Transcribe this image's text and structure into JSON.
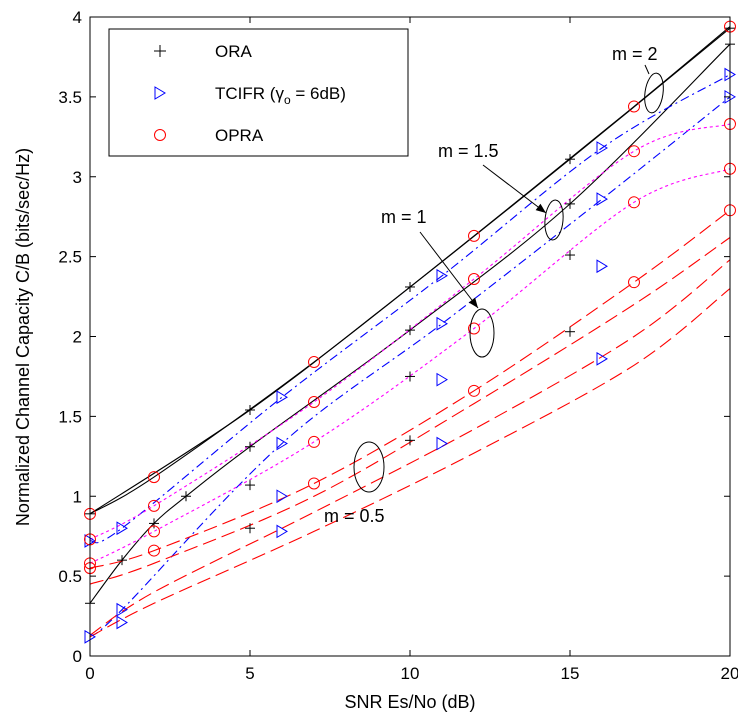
{
  "chart_data": {
    "type": "line",
    "title": "",
    "xlabel": "SNR Es/No (dB)",
    "ylabel": "Normalized Channel Capacity C/B (bits/sec/Hz)",
    "xlim": [
      0,
      20
    ],
    "ylim": [
      0,
      4
    ],
    "xticks": [
      "0",
      "5",
      "10",
      "15",
      "20"
    ],
    "yticks": [
      "0",
      "0.5",
      "1",
      "1.5",
      "2",
      "2.5",
      "3",
      "3.5",
      "4"
    ],
    "grid": false,
    "legend_position": "top-left",
    "legend": [
      {
        "label": "ORA",
        "marker": "plus",
        "color": "#000000"
      },
      {
        "label_main": "TCIFR (",
        "label_gamma": "γ",
        "label_sub": "o",
        "label_tail": " = 6dB)",
        "marker": "triangle-right",
        "color": "#0000ff"
      },
      {
        "label": "OPRA",
        "marker": "circle",
        "color": "#ff0000"
      }
    ],
    "annotations": [
      {
        "label": "m = 2"
      },
      {
        "label": "m = 1.5"
      },
      {
        "label": "m = 1"
      },
      {
        "label": "m = 0.5"
      }
    ],
    "series": [
      {
        "group": "m = 2",
        "method": "ORA",
        "color": "#000000",
        "dash": "solid",
        "marker": "plus",
        "x": [
          0,
          5,
          10,
          15,
          20
        ],
        "y": [
          0.89,
          1.54,
          2.31,
          3.11,
          3.93
        ]
      },
      {
        "group": "m = 2",
        "method": "OPRA",
        "color": "#000000",
        "dash": "solid",
        "marker": "circle",
        "marker_color": "#ff0000",
        "x": [
          0,
          2,
          7,
          12,
          17,
          20
        ],
        "y": [
          0.89,
          1.12,
          1.84,
          2.63,
          3.44,
          3.94
        ]
      },
      {
        "group": "m = 1.5",
        "method": "ORA",
        "color": "#000000",
        "dash": "solid",
        "marker": "plus",
        "x": [
          0,
          1,
          2,
          3,
          5,
          10,
          15,
          20
        ],
        "y": [
          0.33,
          0.6,
          0.83,
          1.0,
          1.31,
          2.04,
          2.83,
          3.83
        ]
      },
      {
        "group": "m = 1.5",
        "method": "TCIFR",
        "color": "#0000ff",
        "dash": "dashdot",
        "marker": "triangle-right",
        "x": [
          0,
          1,
          6,
          11,
          16,
          20
        ],
        "y": [
          0.72,
          0.8,
          1.62,
          2.38,
          3.18,
          3.64
        ]
      },
      {
        "group": "m = 1.5",
        "method": "TCIFR",
        "color": "#0000ff",
        "dash": "dashdot",
        "marker": "triangle-right",
        "x": [
          0,
          1,
          6,
          11,
          16,
          20
        ],
        "y": [
          0.12,
          0.29,
          1.33,
          2.08,
          2.86,
          3.5
        ]
      },
      {
        "group": "m = 1.5",
        "method": "OPRA",
        "color": "#ff00ff",
        "dash": "dotted",
        "marker": "circle",
        "marker_color": "#ff0000",
        "x": [
          0,
          2,
          7,
          12,
          17,
          20
        ],
        "y": [
          0.73,
          0.94,
          1.59,
          2.36,
          3.16,
          3.33
        ]
      },
      {
        "group": "m = 1",
        "method": "ORA",
        "color": "#000000",
        "dash": "solid",
        "marker": "plus",
        "x": [
          5,
          10,
          15
        ],
        "y": [
          1.07,
          1.75,
          2.51
        ]
      },
      {
        "group": "m = 1",
        "method": "TCIFR",
        "color": "#0000ff",
        "dash": "dashdot",
        "marker": "triangle-right",
        "x": [
          1,
          6,
          11,
          16
        ],
        "y": [
          0.21,
          1.0,
          1.73,
          2.44
        ]
      },
      {
        "group": "m = 1",
        "method": "OPRA",
        "color": "#ff00ff",
        "dash": "dotted",
        "marker": "circle",
        "marker_color": "#ff0000",
        "x": [
          0,
          2,
          7,
          12,
          17,
          20
        ],
        "y": [
          0.58,
          0.78,
          1.34,
          2.05,
          2.84,
          3.05
        ]
      },
      {
        "group": "m = 0.5",
        "method": "ORA",
        "color": "#000000",
        "dash": "solid",
        "marker": "plus",
        "x": [
          5,
          10,
          15
        ],
        "y": [
          0.8,
          1.35,
          2.03
        ]
      },
      {
        "group": "m = 0.5",
        "method": "TCIFR",
        "color": "#0000ff",
        "dash": "dashdot",
        "marker": "triangle-right",
        "x": [
          6,
          11,
          16
        ],
        "y": [
          0.78,
          1.33,
          1.86
        ]
      },
      {
        "group": "m = 0.5",
        "method": "OPRA",
        "color": "#ff0000",
        "dash": "longdash",
        "marker": "circle",
        "x": [
          0,
          2,
          7,
          12,
          17,
          20
        ],
        "y": [
          0.55,
          0.66,
          1.08,
          1.66,
          2.34,
          2.79
        ]
      },
      {
        "group": "m = 0.5",
        "method": "OPRA",
        "color": "#ff0000",
        "dash": "longdash",
        "marker": "none",
        "x": [
          0,
          2,
          7,
          12,
          17,
          20
        ],
        "y": [
          0.45,
          0.58,
          1.0,
          1.58,
          2.2,
          2.62
        ]
      },
      {
        "group": "m = 0.5",
        "method": "OPRA",
        "color": "#ff0000",
        "dash": "longdash",
        "marker": "none",
        "x": [
          0,
          2,
          7,
          12,
          17,
          20
        ],
        "y": [
          0.12,
          0.33,
          0.78,
          1.27,
          1.82,
          2.3
        ]
      },
      {
        "group": "m = 0.5",
        "method": "OPRA",
        "color": "#ff0000",
        "dash": "longdash",
        "marker": "none",
        "x": [
          0,
          2,
          7,
          12,
          17,
          20
        ],
        "y": [
          0.13,
          0.4,
          0.9,
          1.42,
          2.0,
          2.48
        ]
      }
    ]
  }
}
